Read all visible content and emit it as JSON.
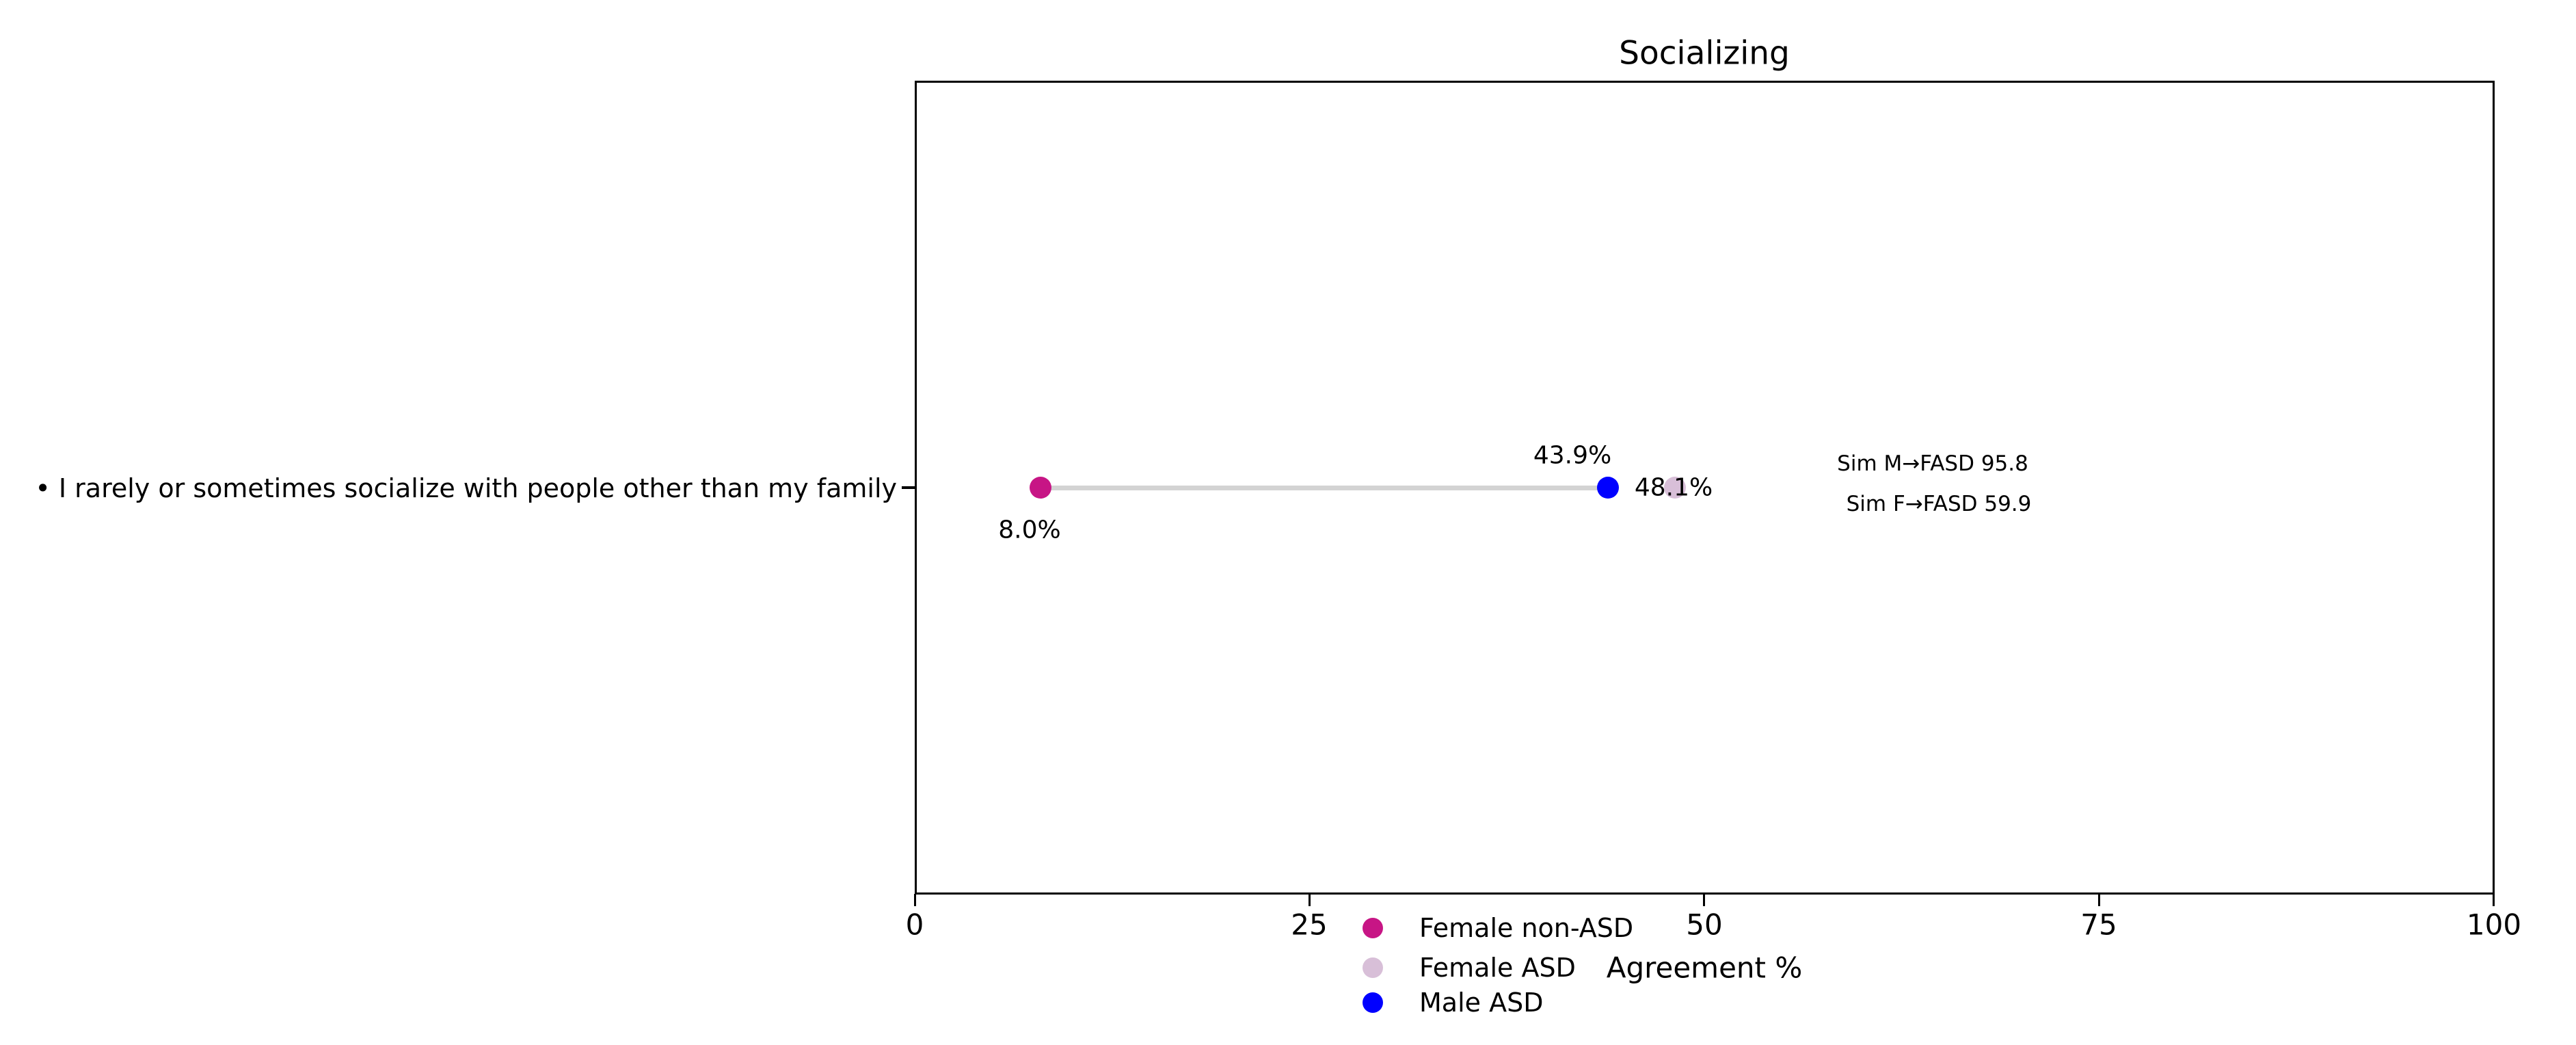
{
  "chart_data": {
    "type": "scatter",
    "variant": "dumbbell-dot-plot",
    "title": "Socializing",
    "xlabel": "Agreement %",
    "ylabel": "",
    "xlim": [
      0,
      100
    ],
    "xticks": [
      "0",
      "25",
      "50",
      "75",
      "100"
    ],
    "grid": false,
    "categories": [
      "• I rarely or sometimes socialize with people other than my family"
    ],
    "series": [
      {
        "name": "Female non-ASD",
        "color": "#c71585",
        "value": 8.0,
        "value_label": "8.0%"
      },
      {
        "name": "Female ASD",
        "color": "#d8bfd8",
        "value": 48.1,
        "value_label": "48.1%"
      },
      {
        "name": "Male ASD",
        "color": "#0000ff",
        "value": 43.9,
        "value_label": "43.9%"
      }
    ],
    "connector": {
      "from_value": 8.0,
      "to_value": 43.9,
      "color": "#d3d3d3"
    },
    "annotations": [
      {
        "text": "Sim M→FASD 95.8"
      },
      {
        "text": "Sim F→FASD 59.9"
      }
    ],
    "legend_position": "lower center, below axis"
  }
}
